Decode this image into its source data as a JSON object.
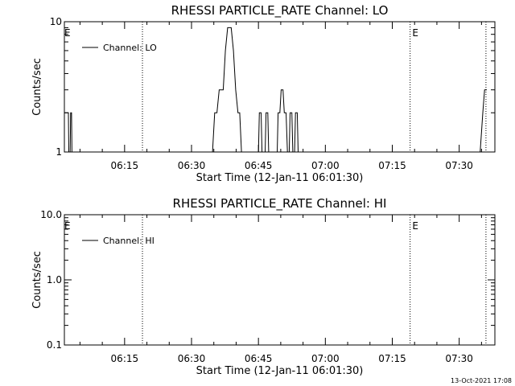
{
  "chart_data": [
    {
      "type": "line",
      "title": "RHESSI PARTICLE_RATE Channel: LO",
      "xlabel": "Start Time (12-Jan-11 06:01:30)",
      "ylabel": "Counts/sec",
      "yscale": "log",
      "ylim": [
        1,
        10
      ],
      "xlim": [
        "06:01:30",
        "07:38:00"
      ],
      "xtick_labels": [
        "06:15",
        "06:30",
        "06:45",
        "07:00",
        "07:15",
        "07:30"
      ],
      "xtick_minutes": [
        15,
        30,
        45,
        60,
        75,
        90
      ],
      "ytick_labels": [
        "1",
        "10"
      ],
      "ytick_values": [
        1,
        10
      ],
      "vlines_minutes": [
        19,
        79,
        96
      ],
      "event_markers": [
        {
          "label": "E",
          "minute": 1.5
        },
        {
          "label": "E",
          "minute": 79.5
        }
      ],
      "legend": {
        "label": "Channel: LO",
        "placement": "top-left"
      },
      "series": [
        {
          "name": "Channel: LO",
          "points": [
            [
              1.5,
              2
            ],
            [
              2.4,
              2
            ],
            [
              2.5,
              1
            ],
            [
              2.8,
              1
            ],
            [
              2.9,
              2
            ],
            [
              3.1,
              2
            ],
            [
              3.2,
              1
            ],
            [
              34.7,
              1
            ],
            [
              35.2,
              2
            ],
            [
              35.7,
              2
            ],
            [
              36.2,
              3
            ],
            [
              37.1,
              3
            ],
            [
              37.6,
              6
            ],
            [
              38.1,
              9
            ],
            [
              38.9,
              9
            ],
            [
              39.4,
              6
            ],
            [
              39.9,
              3
            ],
            [
              40.4,
              2
            ],
            [
              40.8,
              2
            ],
            [
              41.2,
              1
            ],
            [
              45.0,
              1
            ],
            [
              45.2,
              2
            ],
            [
              45.6,
              2
            ],
            [
              45.8,
              1
            ],
            [
              46.5,
              1
            ],
            [
              46.7,
              2
            ],
            [
              47.1,
              2
            ],
            [
              47.3,
              1
            ],
            [
              49.2,
              1
            ],
            [
              49.4,
              2
            ],
            [
              49.8,
              2
            ],
            [
              50.1,
              3
            ],
            [
              50.5,
              3
            ],
            [
              50.8,
              2
            ],
            [
              51.2,
              2
            ],
            [
              51.5,
              1
            ],
            [
              51.9,
              1
            ],
            [
              52.1,
              2
            ],
            [
              52.5,
              2
            ],
            [
              52.7,
              1
            ],
            [
              53.1,
              1
            ],
            [
              53.3,
              2
            ],
            [
              53.7,
              2
            ],
            [
              53.9,
              1
            ],
            [
              94.7,
              1
            ],
            [
              95.3,
              2
            ],
            [
              95.7,
              3
            ],
            [
              96.2,
              3
            ]
          ]
        }
      ]
    },
    {
      "type": "line",
      "title": "RHESSI PARTICLE_RATE Channel: HI",
      "xlabel": "Start Time (12-Jan-11 06:01:30)",
      "ylabel": "Counts/sec",
      "yscale": "log",
      "ylim": [
        0.1,
        10
      ],
      "xlim": [
        "06:01:30",
        "07:38:00"
      ],
      "xtick_labels": [
        "06:15",
        "06:30",
        "06:45",
        "07:00",
        "07:15",
        "07:30"
      ],
      "xtick_minutes": [
        15,
        30,
        45,
        60,
        75,
        90
      ],
      "ytick_labels": [
        "0.1",
        "1.0",
        "10.0"
      ],
      "ytick_values": [
        0.1,
        1,
        10
      ],
      "vlines_minutes": [
        19,
        79,
        96
      ],
      "event_markers": [
        {
          "label": "E",
          "minute": 1.5
        },
        {
          "label": "E",
          "minute": 79.5
        }
      ],
      "legend": {
        "label": "Channel: HI",
        "placement": "top-left"
      },
      "series": [
        {
          "name": "Channel: HI",
          "points": []
        }
      ]
    }
  ],
  "timestamp": "13-Oct-2021 17:08"
}
